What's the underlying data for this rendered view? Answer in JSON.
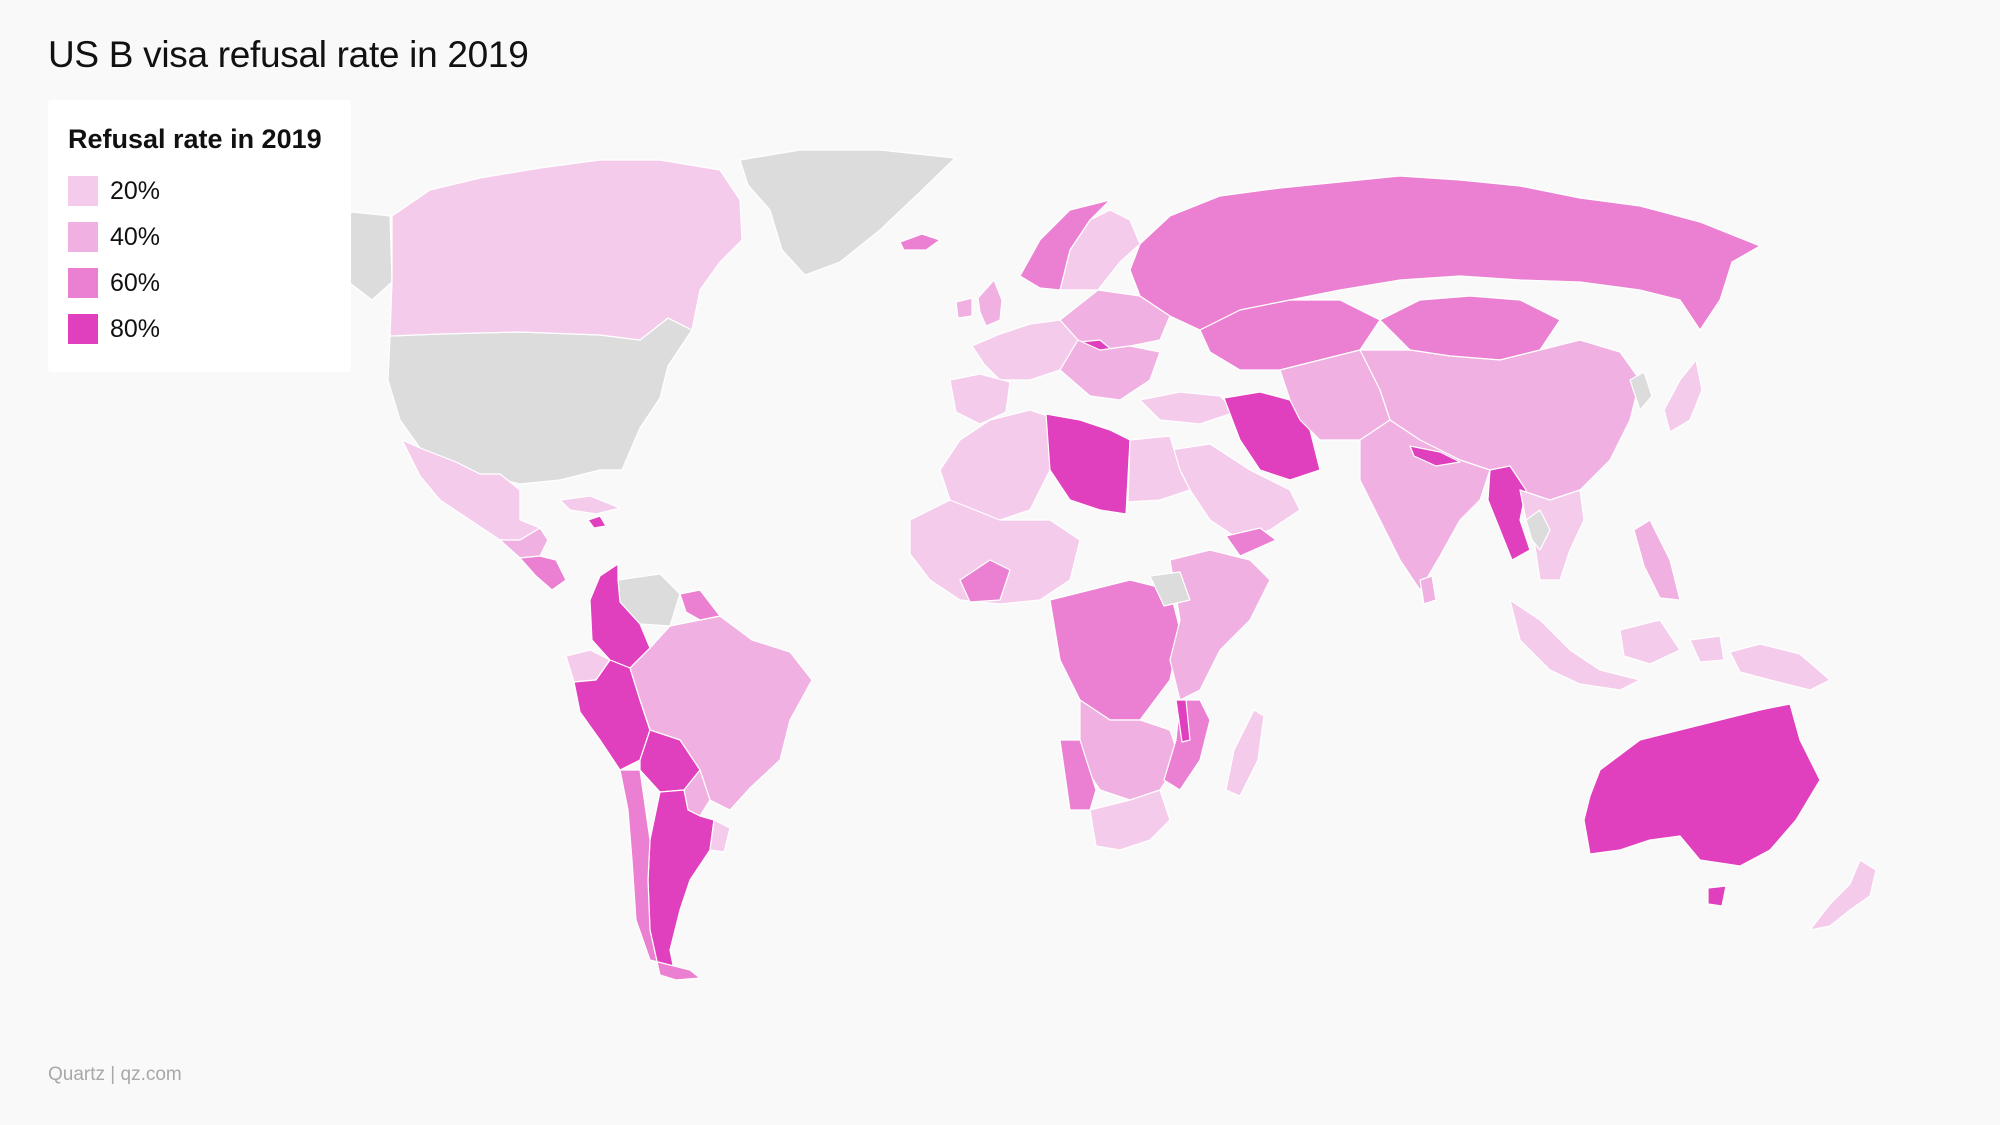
{
  "title": "US B visa refusal rate in 2019",
  "legend": {
    "title": "Refusal rate in 2019",
    "items": [
      {
        "label": "20%",
        "color": "#f5cbec"
      },
      {
        "label": "40%",
        "color": "#f0b0e1"
      },
      {
        "label": "60%",
        "color": "#eb7fd1"
      },
      {
        "label": "80%",
        "color": "#e03fbd"
      }
    ]
  },
  "no_data_color": "#dcdcdc",
  "source": "Quartz | qz.com",
  "regions": [
    {
      "name": "Alaska",
      "level": 0
    },
    {
      "name": "United States",
      "level": 0
    },
    {
      "name": "Greenland",
      "level": 0
    },
    {
      "name": "Canada",
      "level": 1
    },
    {
      "name": "Mexico",
      "level": 1
    },
    {
      "name": "Central America",
      "level": 2
    },
    {
      "name": "Nicaragua",
      "level": 3
    },
    {
      "name": "Cuba",
      "level": 1
    },
    {
      "name": "Haiti",
      "level": 4
    },
    {
      "name": "Venezuela",
      "level": 0
    },
    {
      "name": "Colombia",
      "level": 4
    },
    {
      "name": "Ecuador",
      "level": 1
    },
    {
      "name": "Peru",
      "level": 4
    },
    {
      "name": "Brazil",
      "level": 2
    },
    {
      "name": "Guyana",
      "level": 3
    },
    {
      "name": "Bolivia",
      "level": 4
    },
    {
      "name": "Paraguay",
      "level": 2
    },
    {
      "name": "Argentina",
      "level": 4
    },
    {
      "name": "Chile",
      "level": 3
    },
    {
      "name": "Uruguay",
      "level": 1
    },
    {
      "name": "Iceland",
      "level": 3
    },
    {
      "name": "United Kingdom",
      "level": 2
    },
    {
      "name": "Ireland",
      "level": 2
    },
    {
      "name": "Scandinavia",
      "level": 1
    },
    {
      "name": "Norway",
      "level": 3
    },
    {
      "name": "Western Europe",
      "level": 1
    },
    {
      "name": "Iberia",
      "level": 1
    },
    {
      "name": "Central Europe",
      "level": 2
    },
    {
      "name": "Hungary",
      "level": 4
    },
    {
      "name": "Balkans",
      "level": 2
    },
    {
      "name": "Russia",
      "level": 3
    },
    {
      "name": "Kazakhstan",
      "level": 3
    },
    {
      "name": "Mongolia",
      "level": 3
    },
    {
      "name": "China",
      "level": 2
    },
    {
      "name": "Korea",
      "level": 0
    },
    {
      "name": "Japan",
      "level": 1
    },
    {
      "name": "Turkey",
      "level": 1
    },
    {
      "name": "Iran",
      "level": 4
    },
    {
      "name": "Arabia",
      "level": 1
    },
    {
      "name": "Yemen",
      "level": 3
    },
    {
      "name": "Central Asia",
      "level": 2
    },
    {
      "name": "India",
      "level": 2
    },
    {
      "name": "Nepal",
      "level": 4
    },
    {
      "name": "Sri Lanka",
      "level": 2
    },
    {
      "name": "Myanmar",
      "level": 4
    },
    {
      "name": "Indochina",
      "level": 1
    },
    {
      "name": "Thailand",
      "level": 0
    },
    {
      "name": "Indonesia",
      "level": 1
    },
    {
      "name": "Philippines",
      "level": 2
    },
    {
      "name": "New Guinea",
      "level": 1
    },
    {
      "name": "Australia",
      "level": 4
    },
    {
      "name": "Tasmania",
      "level": 4
    },
    {
      "name": "New Zealand",
      "level": 1
    },
    {
      "name": "North Africa",
      "level": 1
    },
    {
      "name": "Libya",
      "level": 4
    },
    {
      "name": "Egypt",
      "level": 1
    },
    {
      "name": "West Africa",
      "level": 1
    },
    {
      "name": "Ghana",
      "level": 3
    },
    {
      "name": "Central Africa",
      "level": 3
    },
    {
      "name": "East Africa",
      "level": 2
    },
    {
      "name": "South Sudan",
      "level": 0
    },
    {
      "name": "Southern Africa",
      "level": 2
    },
    {
      "name": "Namibia",
      "level": 3
    },
    {
      "name": "South Africa",
      "level": 1
    },
    {
      "name": "Mozambique",
      "level": 3
    },
    {
      "name": "Malawi",
      "level": 4
    },
    {
      "name": "Madagascar",
      "level": 1
    }
  ]
}
